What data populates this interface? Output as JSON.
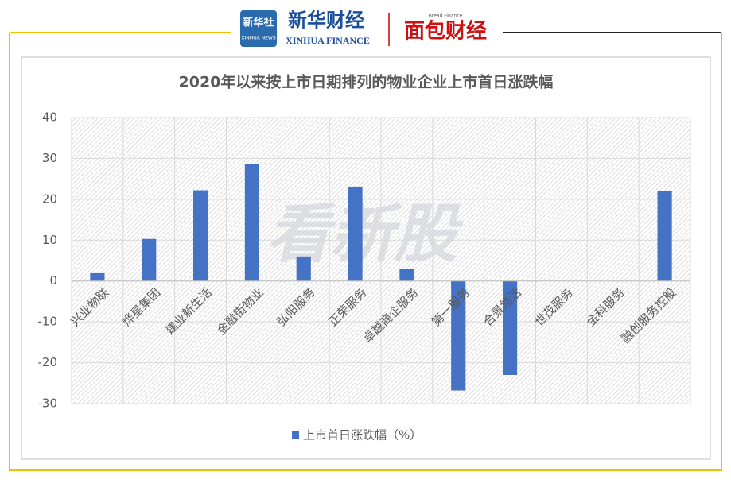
{
  "header": {
    "logo_top": "新华社",
    "logo_bottom": "XINHUA NEWS",
    "brand": "新华财经",
    "brand_en": "XINHUA FINANCE",
    "partner": "面包财经",
    "partner_en": "Bread Finance"
  },
  "watermark": "看新股",
  "chart_data": {
    "type": "bar",
    "title": "2020年以来按上市日期排列的物业企业上市首日涨跌幅",
    "categories": [
      "兴业物联",
      "烨星集团",
      "建业新生活",
      "金融街物业",
      "弘阳服务",
      "正荣服务",
      "卓越商企服务",
      "第一服务",
      "合景悠活",
      "世茂服务",
      "金科服务",
      "融创服务控股"
    ],
    "series": [
      {
        "name": "上市首日涨跌幅（%）",
        "color": "#4472c4",
        "values": [
          1.9,
          10.3,
          22.2,
          28.6,
          6.0,
          23.1,
          2.9,
          -26.8,
          -23.0,
          0,
          0,
          22.0
        ]
      }
    ],
    "ylim": [
      -30,
      40
    ],
    "yticks": [
      -30,
      -20,
      -10,
      0,
      10,
      20,
      30,
      40
    ],
    "grid": true,
    "legend": "bottom"
  }
}
